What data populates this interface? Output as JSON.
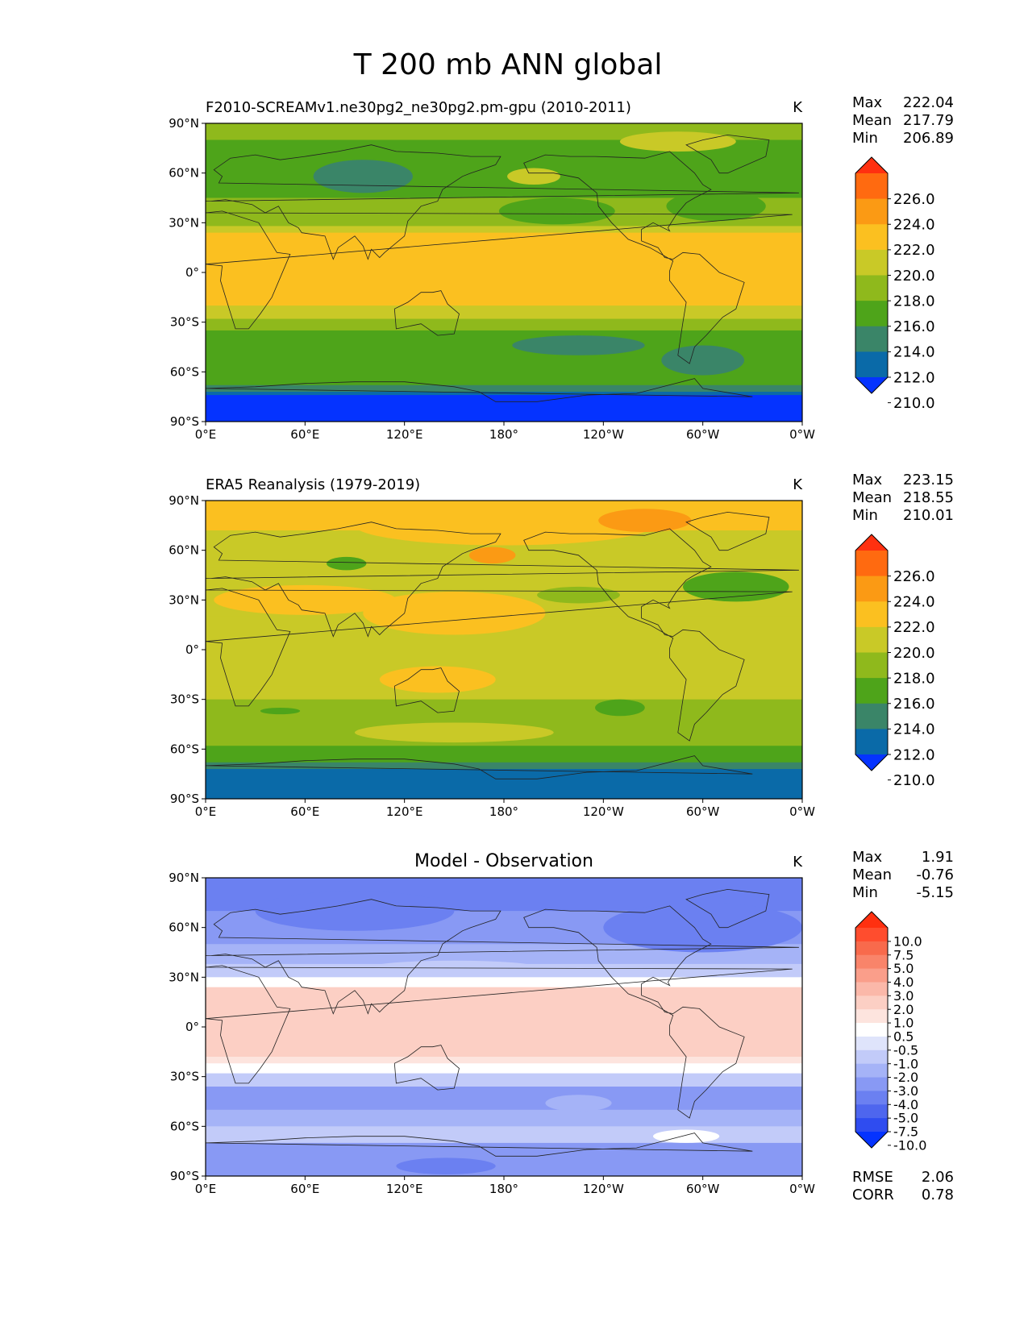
{
  "chart_data": {
    "type": "heatmap",
    "title": "T 200 mb ANN global",
    "x_ticks": [
      "0°E",
      "60°E",
      "120°E",
      "180°",
      "120°W",
      "60°W",
      "0°W"
    ],
    "y_ticks": [
      "90°N",
      "60°N",
      "30°N",
      "0°",
      "30°S",
      "60°S",
      "90°S"
    ],
    "panels": [
      {
        "title": "F2010-SCREAMv1.ne30pg2_ne30pg2.pm-gpu (2010-2011)",
        "title_position": "left",
        "units": "K",
        "stats": [
          {
            "label": "Max",
            "value": "222.04"
          },
          {
            "label": "Mean",
            "value": "217.79"
          },
          {
            "label": "Min",
            "value": "206.89"
          }
        ],
        "colorbar": {
          "labels": [
            "226.0",
            "224.0",
            "222.0",
            "220.0",
            "218.0",
            "216.0",
            "214.0",
            "212.0",
            "210.0"
          ],
          "colors": [
            "#ff3010",
            "#ff6a10",
            "#fb9a14",
            "#fbc020",
            "#c9c927",
            "#8fb91c",
            "#4ea41a",
            "#3a8568",
            "#0a6aa8",
            "#0533ff"
          ]
        },
        "zonal_bands": [
          {
            "lat": [
              90,
              80
            ],
            "color": "#8fb91c"
          },
          {
            "lat": [
              80,
              45
            ],
            "color": "#4ea41a"
          },
          {
            "lat": [
              45,
              28
            ],
            "color": "#8fb91c"
          },
          {
            "lat": [
              28,
              24
            ],
            "color": "#c9c927"
          },
          {
            "lat": [
              24,
              -20
            ],
            "color": "#fbc020"
          },
          {
            "lat": [
              -20,
              -28
            ],
            "color": "#c9c927"
          },
          {
            "lat": [
              -28,
              -35
            ],
            "color": "#8fb91c"
          },
          {
            "lat": [
              -35,
              -68
            ],
            "color": "#4ea41a"
          },
          {
            "lat": [
              -68,
              -72
            ],
            "color": "#3a8568"
          },
          {
            "lat": [
              -72,
              -74
            ],
            "color": "#0a6aa8"
          },
          {
            "lat": [
              -74,
              -90
            ],
            "color": "#0533ff"
          }
        ],
        "anomalies": [
          {
            "lon": 95,
            "lat": 58,
            "dlon": 30,
            "dlat": 10,
            "color": "#3a8568"
          },
          {
            "lon": 198,
            "lat": 58,
            "dlon": 16,
            "dlat": 5,
            "color": "#c9c927"
          },
          {
            "lon": 308,
            "lat": 40,
            "dlon": 30,
            "dlat": 9,
            "color": "#4ea41a"
          },
          {
            "lon": 212,
            "lat": 37,
            "dlon": 35,
            "dlat": 8,
            "color": "#4ea41a"
          },
          {
            "lon": 285,
            "lat": 79,
            "dlon": 35,
            "dlat": 6,
            "color": "#c9c927"
          },
          {
            "lon": 225,
            "lat": -44,
            "dlon": 40,
            "dlat": 6,
            "color": "#3a8568"
          },
          {
            "lon": 300,
            "lat": -53,
            "dlon": 25,
            "dlat": 9,
            "color": "#3a8568"
          }
        ]
      },
      {
        "title": "ERA5 Reanalysis (1979-2019)",
        "title_position": "left",
        "units": "K",
        "stats": [
          {
            "label": "Max",
            "value": "223.15"
          },
          {
            "label": "Mean",
            "value": "218.55"
          },
          {
            "label": "Min",
            "value": "210.01"
          }
        ],
        "colorbar": {
          "labels": [
            "226.0",
            "224.0",
            "222.0",
            "220.0",
            "218.0",
            "216.0",
            "214.0",
            "212.0",
            "210.0"
          ],
          "colors": [
            "#ff3010",
            "#ff6a10",
            "#fb9a14",
            "#fbc020",
            "#c9c927",
            "#8fb91c",
            "#4ea41a",
            "#3a8568",
            "#0a6aa8",
            "#0533ff"
          ]
        },
        "zonal_bands": [
          {
            "lat": [
              90,
              72
            ],
            "color": "#fbc020"
          },
          {
            "lat": [
              72,
              50
            ],
            "color": "#c9c927"
          },
          {
            "lat": [
              50,
              20
            ],
            "color": "#c9c927"
          },
          {
            "lat": [
              20,
              -22
            ],
            "color": "#c9c927"
          },
          {
            "lat": [
              -22,
              -30
            ],
            "color": "#c9c927"
          },
          {
            "lat": [
              -30,
              -58
            ],
            "color": "#8fb91c"
          },
          {
            "lat": [
              -58,
              -68
            ],
            "color": "#4ea41a"
          },
          {
            "lat": [
              -68,
              -72
            ],
            "color": "#3a8568"
          },
          {
            "lat": [
              -72,
              -90
            ],
            "color": "#0a6aa8"
          }
        ],
        "anomalies": [
          {
            "lon": 180,
            "lat": 75,
            "dlon": 90,
            "dlat": 12,
            "color": "#fbc020"
          },
          {
            "lon": 265,
            "lat": 78,
            "dlon": 28,
            "dlat": 7,
            "color": "#fb9a14"
          },
          {
            "lon": 173,
            "lat": 57,
            "dlon": 14,
            "dlat": 5,
            "color": "#fb9a14"
          },
          {
            "lon": 60,
            "lat": 30,
            "dlon": 55,
            "dlat": 9,
            "color": "#fbc020"
          },
          {
            "lon": 150,
            "lat": 22,
            "dlon": 55,
            "dlat": 13,
            "color": "#fbc020"
          },
          {
            "lon": 140,
            "lat": -18,
            "dlon": 35,
            "dlat": 8,
            "color": "#fbc020"
          },
          {
            "lon": 320,
            "lat": 38,
            "dlon": 32,
            "dlat": 9,
            "color": "#4ea41a"
          },
          {
            "lon": 225,
            "lat": 33,
            "dlon": 25,
            "dlat": 5,
            "color": "#8fb91c"
          },
          {
            "lon": 85,
            "lat": 52,
            "dlon": 12,
            "dlat": 4,
            "color": "#4ea41a"
          },
          {
            "lon": 150,
            "lat": -50,
            "dlon": 60,
            "dlat": 6,
            "color": "#c9c927"
          },
          {
            "lon": 250,
            "lat": -35,
            "dlon": 15,
            "dlat": 5,
            "color": "#4ea41a"
          },
          {
            "lon": 45,
            "lat": -37,
            "dlon": 12,
            "dlat": 2,
            "color": "#4ea41a"
          }
        ]
      },
      {
        "title": "Model - Observation",
        "title_position": "center",
        "units": "K",
        "stats": [
          {
            "label": "Max",
            "value": "1.91"
          },
          {
            "label": "Mean",
            "value": "-0.76"
          },
          {
            "label": "Min",
            "value": "-5.15"
          }
        ],
        "colorbar": {
          "labels": [
            "10.0",
            "7.5",
            "5.0",
            "4.0",
            "3.0",
            "2.0",
            "1.0",
            "0.5",
            "-0.5",
            "-1.0",
            "-2.0",
            "-3.0",
            "-4.0",
            "-5.0",
            "-7.5",
            "-10.0"
          ],
          "colors": [
            "#ff3010",
            "#ff4d2e",
            "#f86a4c",
            "#f9846a",
            "#fa9e8a",
            "#fbb8a9",
            "#fccfc4",
            "#fde4de",
            "#ffffff",
            "#dfe4fb",
            "#c2cbf9",
            "#a5b3f7",
            "#8899f4",
            "#6b80f1",
            "#4e66ee",
            "#2f4cf0",
            "#0533ff"
          ]
        },
        "zonal_bands": [
          {
            "lat": [
              90,
              70
            ],
            "color": "#6b80f1"
          },
          {
            "lat": [
              70,
              50
            ],
            "color": "#8899f4"
          },
          {
            "lat": [
              50,
              38
            ],
            "color": "#a5b3f7"
          },
          {
            "lat": [
              38,
              30
            ],
            "color": "#c2cbf9"
          },
          {
            "lat": [
              30,
              24
            ],
            "color": "#ffffff"
          },
          {
            "lat": [
              24,
              -18
            ],
            "color": "#fccfc4"
          },
          {
            "lat": [
              -18,
              -22
            ],
            "color": "#fde4de"
          },
          {
            "lat": [
              -22,
              -28
            ],
            "color": "#ffffff"
          },
          {
            "lat": [
              -28,
              -36
            ],
            "color": "#c2cbf9"
          },
          {
            "lat": [
              -36,
              -50
            ],
            "color": "#8899f4"
          },
          {
            "lat": [
              -50,
              -60
            ],
            "color": "#a5b3f7"
          },
          {
            "lat": [
              -60,
              -70
            ],
            "color": "#c2cbf9"
          },
          {
            "lat": [
              -70,
              -90
            ],
            "color": "#8899f4"
          }
        ],
        "anomalies": [
          {
            "lon": 300,
            "lat": 60,
            "dlon": 60,
            "dlat": 15,
            "color": "#6b80f1"
          },
          {
            "lon": 90,
            "lat": 70,
            "dlon": 60,
            "dlat": 12,
            "color": "#6b80f1"
          },
          {
            "lon": 290,
            "lat": -66,
            "dlon": 20,
            "dlat": 4,
            "color": "#ffffff"
          },
          {
            "lon": 145,
            "lat": -84,
            "dlon": 30,
            "dlat": 5,
            "color": "#6b80f1"
          },
          {
            "lon": 150,
            "lat": 36,
            "dlon": 50,
            "dlat": 4,
            "color": "#c2cbf9"
          },
          {
            "lon": 225,
            "lat": -46,
            "dlon": 20,
            "dlat": 5,
            "color": "#a5b3f7"
          }
        ]
      }
    ],
    "footer": [
      {
        "label": "RMSE",
        "value": "2.06"
      },
      {
        "label": "CORR",
        "value": "0.78"
      }
    ]
  }
}
